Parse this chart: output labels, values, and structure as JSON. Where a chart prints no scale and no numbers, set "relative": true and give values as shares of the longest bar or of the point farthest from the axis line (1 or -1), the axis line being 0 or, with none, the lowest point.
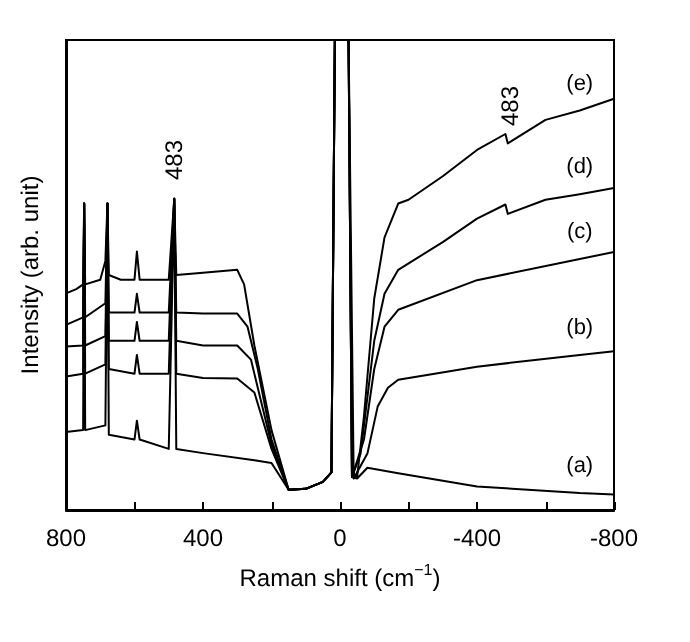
{
  "chart_data": {
    "type": "line",
    "relative": true,
    "xlabel": "Raman shift (cm$^{−1}$)",
    "ylabel": "Intensity (arb. unit)",
    "xlim": [
      800,
      -800
    ],
    "xticks": [
      800,
      {
        "value": 600,
        "label": null
      },
      400,
      {
        "value": 200,
        "label": null
      },
      0,
      {
        "value": -200,
        "label": null
      },
      -400,
      {
        "value": -600,
        "label": null
      },
      -800
    ],
    "legend": false,
    "grid": false,
    "marker": "none",
    "line_style": "solid",
    "annotations": [
      "483",
      "483"
    ],
    "series": [
      {
        "name": "(e)",
        "color": "#000000",
        "x": [
          800,
          770,
          750,
          747,
          744,
          700,
          685,
          679,
          675,
          640,
          600,
          593,
          585,
          500,
          484,
          478,
          400,
          300,
          280,
          250,
          200,
          150,
          100,
          50,
          25,
          15,
          -25,
          -35,
          -50,
          -70,
          -100,
          -130,
          -170,
          -200,
          -300,
          -400,
          -483,
          -490,
          -600,
          -700,
          -800
        ],
        "values": [
          0.461,
          0.47,
          0.48,
          0.652,
          0.48,
          0.49,
          0.53,
          0.652,
          0.5,
          0.49,
          0.49,
          0.55,
          0.49,
          0.49,
          0.662,
          0.5,
          0.505,
          0.511,
          0.48,
          0.35,
          0.17,
          0.043,
          0.045,
          0.06,
          0.08,
          1,
          1,
          0.08,
          0.07,
          0.2,
          0.45,
          0.58,
          0.652,
          0.66,
          0.71,
          0.766,
          0.8,
          0.78,
          0.83,
          0.85,
          0.875
        ]
      },
      {
        "name": "(d)",
        "color": "#000000",
        "x": [
          800,
          750,
          747,
          744,
          685,
          679,
          675,
          600,
          593,
          585,
          500,
          484,
          478,
          400,
          300,
          270,
          240,
          200,
          150,
          100,
          50,
          25,
          15,
          -25,
          -35,
          -60,
          -100,
          -130,
          -170,
          -300,
          -400,
          -483,
          -490,
          -600,
          -700,
          -800
        ],
        "values": [
          0.394,
          0.41,
          0.652,
          0.41,
          0.44,
          0.652,
          0.42,
          0.42,
          0.46,
          0.42,
          0.42,
          0.662,
          0.42,
          0.418,
          0.418,
          0.39,
          0.3,
          0.15,
          0.043,
          0.045,
          0.06,
          0.08,
          1,
          1,
          0.07,
          0.12,
          0.36,
          0.46,
          0.511,
          0.57,
          0.62,
          0.65,
          0.63,
          0.66,
          0.672,
          0.685
        ]
      },
      {
        "name": "(c)",
        "color": "#000000",
        "x": [
          800,
          750,
          747,
          744,
          685,
          679,
          675,
          600,
          593,
          585,
          500,
          484,
          478,
          400,
          300,
          260,
          200,
          150,
          100,
          50,
          25,
          15,
          -25,
          -35,
          -70,
          -100,
          -130,
          -170,
          -400,
          -700,
          -800
        ],
        "values": [
          0.348,
          0.35,
          0.652,
          0.35,
          0.37,
          0.652,
          0.36,
          0.36,
          0.4,
          0.36,
          0.36,
          0.662,
          0.36,
          0.35,
          0.35,
          0.32,
          0.14,
          0.043,
          0.045,
          0.06,
          0.08,
          1,
          1,
          0.07,
          0.15,
          0.3,
          0.39,
          0.426,
          0.489,
          0.534,
          0.549
        ]
      },
      {
        "name": "(b)",
        "color": "#000000",
        "x": [
          800,
          750,
          747,
          744,
          685,
          679,
          675,
          600,
          593,
          585,
          500,
          484,
          478,
          400,
          300,
          250,
          200,
          150,
          100,
          50,
          25,
          15,
          -25,
          -40,
          -80,
          -110,
          -140,
          -170,
          -400,
          -700,
          -800
        ],
        "values": [
          0.284,
          0.29,
          0.652,
          0.29,
          0.31,
          0.652,
          0.3,
          0.29,
          0.33,
          0.29,
          0.29,
          0.662,
          0.29,
          0.281,
          0.28,
          0.25,
          0.13,
          0.043,
          0.045,
          0.06,
          0.08,
          1,
          1,
          0.067,
          0.12,
          0.22,
          0.26,
          0.277,
          0.305,
          0.33,
          0.338
        ]
      },
      {
        "name": "(a)",
        "color": "#000000",
        "x": [
          800,
          750,
          747,
          744,
          685,
          679,
          675,
          600,
          593,
          585,
          500,
          484,
          478,
          400,
          250,
          200,
          150,
          100,
          50,
          25,
          15,
          -25,
          -35,
          -50,
          -80,
          -170,
          -400,
          -700,
          -800
        ],
        "values": [
          0.166,
          0.17,
          0.652,
          0.17,
          0.18,
          0.652,
          0.16,
          0.15,
          0.19,
          0.15,
          0.13,
          0.662,
          0.13,
          0.121,
          0.106,
          0.1,
          0.043,
          0.045,
          0.06,
          0.08,
          1,
          1,
          0.07,
          0.067,
          0.09,
          0.078,
          0.05,
          0.036,
          0.033
        ]
      }
    ]
  }
}
